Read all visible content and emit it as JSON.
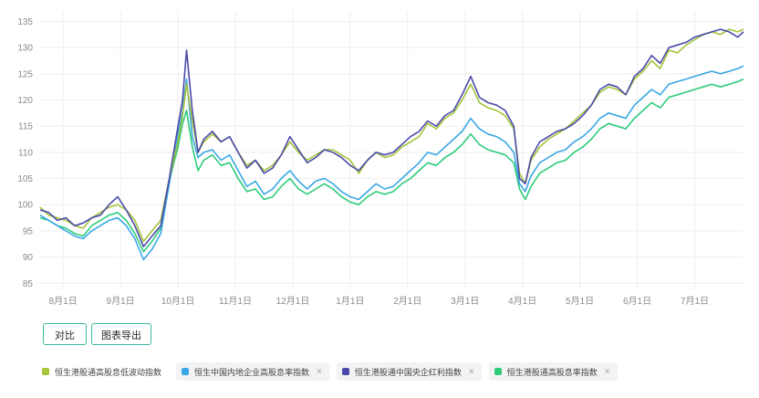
{
  "chart_data": {
    "type": "line",
    "ylim": [
      84,
      137
    ],
    "yticks": [
      85,
      90,
      95,
      100,
      105,
      110,
      115,
      120,
      125,
      130,
      135
    ],
    "x_labels": [
      "8月1日",
      "9月1日",
      "10月1日",
      "11月1日",
      "12月1日",
      "1月1日",
      "2月1日",
      "3月1日",
      "4月1日",
      "5月1日",
      "6月1日",
      "7月1日"
    ],
    "x_positions": [
      1,
      2,
      3,
      4,
      5,
      6,
      7,
      8,
      9,
      10,
      11,
      12
    ],
    "xlim": [
      0.6,
      12.85
    ],
    "grid": true,
    "legend_placement": "bottom",
    "series": [
      {
        "name": "恒生港股通高股息低波动指数",
        "color": "#a3c43b",
        "x": [
          0.6,
          0.75,
          0.9,
          1.05,
          1.2,
          1.35,
          1.5,
          1.65,
          1.8,
          1.95,
          2.1,
          2.25,
          2.4,
          2.55,
          2.7,
          2.85,
          3.0,
          3.08,
          3.15,
          3.25,
          3.35,
          3.45,
          3.6,
          3.75,
          3.9,
          4.05,
          4.2,
          4.35,
          4.5,
          4.65,
          4.8,
          4.95,
          5.1,
          5.25,
          5.4,
          5.55,
          5.7,
          5.85,
          6.0,
          6.15,
          6.3,
          6.45,
          6.6,
          6.75,
          6.9,
          7.05,
          7.2,
          7.35,
          7.5,
          7.65,
          7.8,
          7.95,
          8.1,
          8.25,
          8.4,
          8.55,
          8.7,
          8.85,
          8.95,
          9.05,
          9.15,
          9.3,
          9.45,
          9.6,
          9.75,
          9.9,
          10.05,
          10.2,
          10.35,
          10.5,
          10.65,
          10.8,
          10.95,
          11.1,
          11.25,
          11.4,
          11.55,
          11.7,
          11.85,
          12.0,
          12.15,
          12.3,
          12.45,
          12.6,
          12.75,
          12.85
        ],
        "values": [
          99.5,
          98.0,
          97.5,
          97.0,
          96.0,
          95.5,
          97.5,
          98.5,
          99.5,
          100.0,
          99.0,
          97.0,
          93.0,
          95.0,
          97.0,
          105.0,
          112.0,
          117.0,
          123.0,
          116.0,
          110.0,
          112.0,
          113.5,
          112.0,
          113.0,
          110.0,
          107.5,
          108.5,
          106.5,
          107.5,
          109.5,
          112.0,
          110.0,
          108.5,
          109.5,
          110.5,
          110.5,
          109.5,
          108.5,
          106.0,
          108.5,
          110.0,
          109.0,
          109.5,
          111.0,
          112.0,
          113.0,
          115.5,
          114.5,
          116.5,
          117.5,
          120.0,
          123.0,
          119.5,
          118.5,
          118.0,
          117.0,
          114.5,
          106.0,
          104.0,
          108.5,
          111.0,
          112.5,
          113.5,
          114.5,
          116.0,
          117.5,
          119.0,
          121.5,
          122.5,
          122.0,
          121.0,
          124.0,
          125.5,
          127.5,
          126.0,
          129.5,
          129.0,
          130.5,
          131.5,
          132.5,
          133.0,
          132.5,
          133.5,
          133.0,
          133.5
        ]
      },
      {
        "name": "恒生中国内地企业高股息率指数",
        "color": "#3aa7e6",
        "x": [
          0.6,
          0.75,
          0.9,
          1.05,
          1.2,
          1.35,
          1.5,
          1.65,
          1.8,
          1.95,
          2.1,
          2.25,
          2.4,
          2.55,
          2.7,
          2.85,
          3.0,
          3.08,
          3.15,
          3.25,
          3.35,
          3.45,
          3.6,
          3.75,
          3.9,
          4.05,
          4.2,
          4.35,
          4.5,
          4.65,
          4.8,
          4.95,
          5.1,
          5.25,
          5.4,
          5.55,
          5.7,
          5.85,
          6.0,
          6.15,
          6.3,
          6.45,
          6.6,
          6.75,
          6.9,
          7.05,
          7.2,
          7.35,
          7.5,
          7.65,
          7.8,
          7.95,
          8.1,
          8.25,
          8.4,
          8.55,
          8.7,
          8.85,
          8.95,
          9.05,
          9.15,
          9.3,
          9.45,
          9.6,
          9.75,
          9.9,
          10.05,
          10.2,
          10.35,
          10.5,
          10.65,
          10.8,
          10.95,
          11.1,
          11.25,
          11.4,
          11.55,
          11.7,
          11.85,
          12.0,
          12.15,
          12.3,
          12.45,
          12.6,
          12.75,
          12.85
        ],
        "values": [
          98.0,
          97.0,
          96.0,
          95.0,
          94.0,
          93.5,
          95.0,
          96.0,
          97.0,
          97.5,
          96.0,
          93.5,
          89.5,
          91.5,
          94.5,
          104.0,
          113.5,
          118.0,
          124.0,
          113.0,
          109.0,
          110.0,
          110.5,
          108.5,
          109.5,
          106.5,
          103.5,
          104.5,
          102.0,
          103.0,
          105.0,
          106.5,
          104.5,
          103.0,
          104.5,
          105.0,
          104.0,
          102.5,
          101.5,
          101.0,
          102.5,
          104.0,
          103.0,
          103.5,
          105.0,
          106.5,
          108.0,
          110.0,
          109.5,
          111.0,
          112.5,
          114.0,
          116.5,
          114.5,
          113.5,
          113.0,
          112.0,
          110.0,
          104.0,
          102.5,
          105.5,
          108.0,
          109.0,
          110.0,
          110.5,
          112.0,
          113.0,
          114.5,
          116.5,
          117.5,
          117.0,
          116.5,
          119.0,
          120.5,
          122.0,
          121.0,
          123.0,
          123.5,
          124.0,
          124.5,
          125.0,
          125.5,
          125.0,
          125.5,
          126.0,
          126.5
        ]
      },
      {
        "name": "恒生港股通中国央企红利指数",
        "color": "#4b4aa8",
        "x": [
          0.6,
          0.75,
          0.9,
          1.05,
          1.2,
          1.35,
          1.5,
          1.65,
          1.8,
          1.95,
          2.1,
          2.25,
          2.4,
          2.55,
          2.7,
          2.85,
          3.0,
          3.08,
          3.15,
          3.25,
          3.35,
          3.45,
          3.6,
          3.75,
          3.9,
          4.05,
          4.2,
          4.35,
          4.5,
          4.65,
          4.8,
          4.95,
          5.1,
          5.25,
          5.4,
          5.55,
          5.7,
          5.85,
          6.0,
          6.15,
          6.3,
          6.45,
          6.6,
          6.75,
          6.9,
          7.05,
          7.2,
          7.35,
          7.5,
          7.65,
          7.8,
          7.95,
          8.1,
          8.25,
          8.4,
          8.55,
          8.7,
          8.85,
          8.95,
          9.05,
          9.15,
          9.3,
          9.45,
          9.6,
          9.75,
          9.9,
          10.05,
          10.2,
          10.35,
          10.5,
          10.65,
          10.8,
          10.95,
          11.1,
          11.25,
          11.4,
          11.55,
          11.7,
          11.85,
          12.0,
          12.15,
          12.3,
          12.45,
          12.6,
          12.75,
          12.85
        ],
        "values": [
          99.0,
          98.5,
          97.0,
          97.5,
          96.0,
          96.5,
          97.5,
          98.0,
          100.0,
          101.5,
          99.0,
          96.0,
          92.0,
          94.0,
          96.0,
          105.0,
          115.0,
          120.0,
          129.5,
          118.0,
          110.0,
          112.5,
          114.0,
          112.0,
          113.0,
          110.0,
          107.0,
          108.5,
          106.0,
          107.0,
          109.5,
          113.0,
          110.5,
          108.0,
          109.0,
          110.5,
          110.0,
          109.0,
          107.5,
          106.5,
          108.5,
          110.0,
          109.5,
          110.0,
          111.5,
          113.0,
          114.0,
          116.0,
          115.0,
          117.0,
          118.0,
          121.0,
          124.5,
          120.5,
          119.5,
          119.0,
          118.0,
          115.0,
          105.0,
          104.0,
          109.0,
          112.0,
          113.0,
          114.0,
          114.5,
          115.5,
          117.0,
          119.0,
          122.0,
          123.0,
          122.5,
          121.0,
          124.5,
          126.0,
          128.5,
          127.0,
          130.0,
          130.5,
          131.0,
          132.0,
          132.5,
          133.0,
          133.5,
          133.0,
          132.0,
          133.0
        ]
      },
      {
        "name": "恒生港股通高股息率指数",
        "color": "#2ecc7a",
        "x": [
          0.6,
          0.75,
          0.9,
          1.05,
          1.2,
          1.35,
          1.5,
          1.65,
          1.8,
          1.95,
          2.1,
          2.25,
          2.4,
          2.55,
          2.7,
          2.85,
          3.0,
          3.08,
          3.15,
          3.25,
          3.35,
          3.45,
          3.6,
          3.75,
          3.9,
          4.05,
          4.2,
          4.35,
          4.5,
          4.65,
          4.8,
          4.95,
          5.1,
          5.25,
          5.4,
          5.55,
          5.7,
          5.85,
          6.0,
          6.15,
          6.3,
          6.45,
          6.6,
          6.75,
          6.9,
          7.05,
          7.2,
          7.35,
          7.5,
          7.65,
          7.8,
          7.95,
          8.1,
          8.25,
          8.4,
          8.55,
          8.7,
          8.85,
          8.95,
          9.05,
          9.15,
          9.3,
          9.45,
          9.6,
          9.75,
          9.9,
          10.05,
          10.2,
          10.35,
          10.5,
          10.65,
          10.8,
          10.95,
          11.1,
          11.25,
          11.4,
          11.55,
          11.7,
          11.85,
          12.0,
          12.15,
          12.3,
          12.45,
          12.6,
          12.75,
          12.85
        ],
        "values": [
          97.5,
          97.0,
          96.0,
          95.5,
          94.5,
          94.0,
          96.0,
          97.0,
          98.0,
          98.5,
          97.0,
          94.5,
          91.0,
          93.0,
          95.5,
          104.5,
          111.0,
          115.5,
          118.0,
          111.0,
          106.5,
          108.5,
          109.5,
          107.5,
          108.0,
          105.0,
          102.5,
          103.0,
          101.0,
          101.5,
          103.5,
          105.0,
          103.0,
          102.0,
          103.0,
          104.0,
          103.0,
          101.5,
          100.5,
          100.0,
          101.5,
          102.5,
          102.0,
          102.5,
          104.0,
          105.0,
          106.5,
          108.0,
          107.5,
          109.0,
          110.0,
          111.5,
          113.5,
          111.5,
          110.5,
          110.0,
          109.5,
          108.0,
          103.0,
          101.0,
          103.5,
          106.0,
          107.0,
          108.0,
          108.5,
          110.0,
          111.0,
          112.5,
          114.5,
          115.5,
          115.0,
          114.5,
          116.5,
          118.0,
          119.5,
          118.5,
          120.5,
          121.0,
          121.5,
          122.0,
          122.5,
          123.0,
          122.5,
          123.0,
          123.5,
          124.0
        ]
      }
    ]
  },
  "buttons": {
    "compare": "对比",
    "export": "图表导出"
  },
  "legend": [
    {
      "label": "恒生港股通高股息低波动指数",
      "color": "#a3c43b",
      "closable": false
    },
    {
      "label": "恒生中国内地企业高股息率指数",
      "color": "#3aa7e6",
      "closable": true
    },
    {
      "label": "恒生港股通中国央企红利指数",
      "color": "#4b4aa8",
      "closable": true
    },
    {
      "label": "恒生港股通高股息率指数",
      "color": "#2ecc7a",
      "closable": true
    }
  ],
  "close_glyph": "×"
}
